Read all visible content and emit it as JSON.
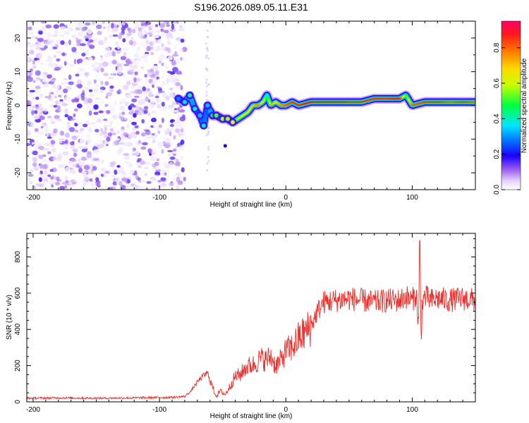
{
  "title": "S196.2026.089.05.11.E31",
  "chart_data": [
    {
      "type": "heatmap",
      "xlabel": "Height of straight line (km)",
      "ylabel": "Frequency (Hz)",
      "xlim": [
        -205,
        150
      ],
      "ylim": [
        -25,
        25
      ],
      "xticks": [
        -200,
        -100,
        0,
        100
      ],
      "yticks": [
        -20,
        -10,
        0,
        10,
        20
      ],
      "noise_region_x": [
        -205,
        -80
      ],
      "ridge": {
        "x": [
          -85,
          -80,
          -76,
          -72,
          -68,
          -65,
          -62,
          -58,
          -55,
          -50,
          -46,
          -42,
          -38,
          -34,
          -30,
          -26,
          -22,
          -18,
          -15,
          -12,
          -8,
          -4,
          0,
          5,
          10,
          20,
          30,
          40,
          50,
          60,
          70,
          80,
          90,
          95,
          100,
          110,
          120,
          130,
          140,
          150
        ],
        "frequency": [
          2,
          1,
          3,
          -1,
          -3,
          -6,
          0,
          -3,
          -3,
          -4,
          -4,
          -5,
          -4,
          -3,
          -2,
          0,
          0,
          1,
          3,
          0,
          1,
          0,
          0,
          1,
          0,
          1,
          1,
          1,
          1,
          1,
          2,
          2,
          2,
          3,
          0,
          1,
          1,
          1,
          1,
          1
        ],
        "amplitude": [
          0.2,
          0.3,
          0.35,
          0.3,
          0.25,
          0.3,
          0.25,
          0.4,
          0.45,
          0.5,
          0.5,
          0.55,
          0.6,
          0.65,
          0.7,
          0.75,
          0.8,
          0.7,
          0.4,
          0.8,
          0.7,
          0.8,
          0.85,
          0.9,
          0.9,
          0.95,
          0.95,
          0.95,
          0.9,
          0.9,
          0.9,
          0.9,
          0.95,
          0.5,
          0.85,
          0.9,
          0.9,
          0.85,
          0.9,
          0.85
        ]
      },
      "colorbar": {
        "label": "Normalized spectral amplitude",
        "range": [
          0,
          0.95
        ],
        "ticks": [
          "0.0",
          "0.2",
          "0.4",
          "0.6",
          "0.8"
        ]
      }
    },
    {
      "type": "line",
      "xlabel": "Height of straight line (km)",
      "ylabel": "SNR (10 * v/v)",
      "xlim": [
        -205,
        150
      ],
      "ylim": [
        0,
        930
      ],
      "xticks": [
        -200,
        -100,
        0,
        100
      ],
      "yticks": [
        0,
        200,
        400,
        600,
        800
      ],
      "color": "#e8302c",
      "series": [
        {
          "name": "SNR",
          "x": [
            -205,
            -180,
            -150,
            -120,
            -90,
            -80,
            -75,
            -70,
            -66,
            -62,
            -58,
            -55,
            -52,
            -48,
            -44,
            -40,
            -36,
            -32,
            -28,
            -24,
            -20,
            -16,
            -12,
            -8,
            -4,
            0,
            5,
            10,
            15,
            20,
            25,
            30,
            40,
            50,
            60,
            70,
            80,
            90,
            95,
            100,
            103,
            105,
            106,
            107,
            108,
            110,
            115,
            120,
            130,
            140,
            150
          ],
          "values": [
            20,
            22,
            20,
            22,
            25,
            30,
            60,
            110,
            140,
            160,
            80,
            30,
            60,
            40,
            90,
            140,
            150,
            190,
            200,
            210,
            240,
            230,
            250,
            200,
            230,
            280,
            300,
            350,
            380,
            420,
            500,
            550,
            560,
            570,
            560,
            550,
            560,
            560,
            580,
            560,
            600,
            420,
            930,
            300,
            560,
            580,
            560,
            570,
            560,
            570,
            560
          ]
        }
      ]
    }
  ]
}
